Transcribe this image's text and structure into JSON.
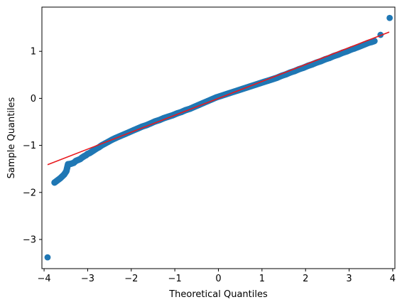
{
  "chart_data": {
    "type": "scatter",
    "title": "",
    "xlabel": "Theoretical Quantiles",
    "ylabel": "Sample Quantiles",
    "xlim": [
      -4.05,
      4.05
    ],
    "ylim": [
      -3.62,
      1.94
    ],
    "x_ticks": [
      -4,
      -3,
      -2,
      -1,
      0,
      1,
      2,
      3,
      4
    ],
    "x_tick_labels": [
      "−4",
      "−3",
      "−2",
      "−1",
      "0",
      "1",
      "2",
      "3",
      "4"
    ],
    "y_ticks": [
      -3,
      -2,
      -1,
      0,
      1
    ],
    "y_tick_labels": [
      "−3",
      "−2",
      "−1",
      "0",
      "1"
    ],
    "grid": false,
    "legend": false,
    "colors": {
      "points": "#1f77b4",
      "line": "#e8191e"
    },
    "series": [
      {
        "kind": "scatter",
        "points": [
          [
            -3.92,
            -3.38
          ],
          [
            -3.76,
            -1.79
          ],
          [
            -3.63,
            -1.7
          ],
          [
            -3.54,
            -1.62
          ],
          [
            -3.49,
            -1.55
          ],
          [
            -3.45,
            -1.4
          ],
          [
            -3.38,
            -1.39
          ],
          [
            -3.32,
            -1.37
          ],
          [
            -3.27,
            -1.33
          ],
          [
            -3.22,
            -1.31
          ],
          [
            -3.17,
            -1.29
          ],
          [
            -3.13,
            -1.26
          ],
          [
            -3.08,
            -1.23
          ],
          [
            -3.04,
            -1.21
          ],
          [
            -3.0,
            -1.18
          ],
          [
            -2.95,
            -1.16
          ],
          [
            -2.9,
            -1.13
          ],
          [
            -2.85,
            -1.1
          ],
          [
            -2.8,
            -1.07
          ],
          [
            -2.74,
            -1.04
          ],
          [
            -2.68,
            -1.0
          ],
          [
            -2.6,
            -0.96
          ],
          [
            -2.52,
            -0.92
          ],
          [
            -2.44,
            -0.88
          ],
          [
            -2.35,
            -0.84
          ],
          [
            -2.25,
            -0.8
          ],
          [
            -2.15,
            -0.76
          ],
          [
            -2.05,
            -0.72
          ],
          [
            -1.95,
            -0.68
          ],
          [
            -1.85,
            -0.64
          ],
          [
            -1.75,
            -0.6
          ],
          [
            -1.65,
            -0.57
          ],
          [
            -1.55,
            -0.53
          ],
          [
            -1.45,
            -0.49
          ],
          [
            -1.35,
            -0.46
          ],
          [
            -1.25,
            -0.42
          ],
          [
            -1.15,
            -0.39
          ],
          [
            -1.05,
            -0.36
          ],
          [
            -0.95,
            -0.32
          ],
          [
            -0.85,
            -0.29
          ],
          [
            -0.75,
            -0.25
          ],
          [
            -0.65,
            -0.22
          ],
          [
            -0.55,
            -0.18
          ],
          [
            -0.45,
            -0.14
          ],
          [
            -0.35,
            -0.1
          ],
          [
            -0.25,
            -0.06
          ],
          [
            -0.15,
            -0.02
          ],
          [
            -0.05,
            0.02
          ],
          [
            0.05,
            0.05
          ],
          [
            0.15,
            0.08
          ],
          [
            0.25,
            0.11
          ],
          [
            0.35,
            0.14
          ],
          [
            0.45,
            0.17
          ],
          [
            0.55,
            0.2
          ],
          [
            0.65,
            0.23
          ],
          [
            0.75,
            0.26
          ],
          [
            0.85,
            0.29
          ],
          [
            0.95,
            0.32
          ],
          [
            1.05,
            0.35
          ],
          [
            1.15,
            0.38
          ],
          [
            1.25,
            0.41
          ],
          [
            1.35,
            0.44
          ],
          [
            1.45,
            0.48
          ],
          [
            1.55,
            0.51
          ],
          [
            1.65,
            0.55
          ],
          [
            1.75,
            0.58
          ],
          [
            1.85,
            0.62
          ],
          [
            1.95,
            0.65
          ],
          [
            2.05,
            0.69
          ],
          [
            2.15,
            0.72
          ],
          [
            2.25,
            0.76
          ],
          [
            2.35,
            0.79
          ],
          [
            2.45,
            0.83
          ],
          [
            2.55,
            0.86
          ],
          [
            2.65,
            0.9
          ],
          [
            2.75,
            0.93
          ],
          [
            2.85,
            0.97
          ],
          [
            2.95,
            1.0
          ],
          [
            3.05,
            1.04
          ],
          [
            3.12,
            1.06
          ],
          [
            3.2,
            1.09
          ],
          [
            3.28,
            1.12
          ],
          [
            3.36,
            1.15
          ],
          [
            3.44,
            1.18
          ],
          [
            3.52,
            1.2
          ],
          [
            3.58,
            1.22
          ],
          [
            3.72,
            1.35
          ],
          [
            3.93,
            1.71
          ]
        ]
      },
      {
        "kind": "line",
        "points": [
          [
            -3.92,
            -1.41
          ],
          [
            3.92,
            1.41
          ]
        ]
      }
    ]
  }
}
